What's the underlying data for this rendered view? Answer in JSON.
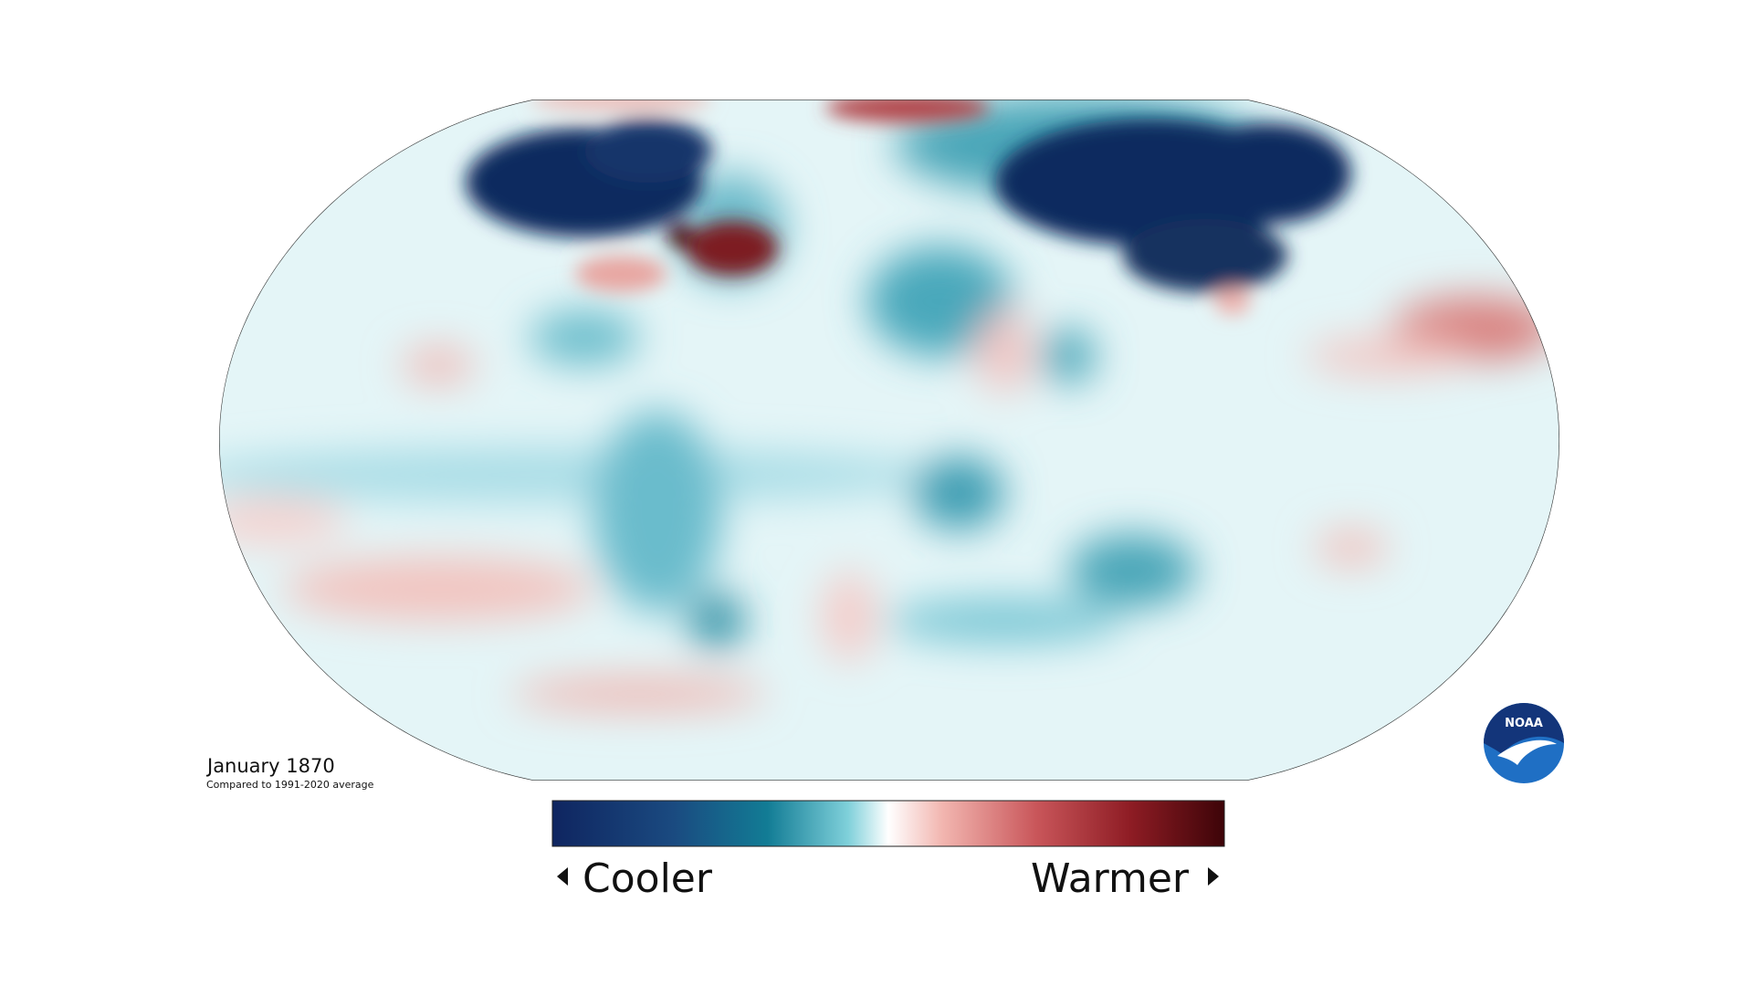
{
  "caption": {
    "title": "January 1870",
    "subtitle": "Compared to 1991-2020 average"
  },
  "legend": {
    "low": "Cooler",
    "high": "Warmer"
  },
  "logo": "NOAA"
}
